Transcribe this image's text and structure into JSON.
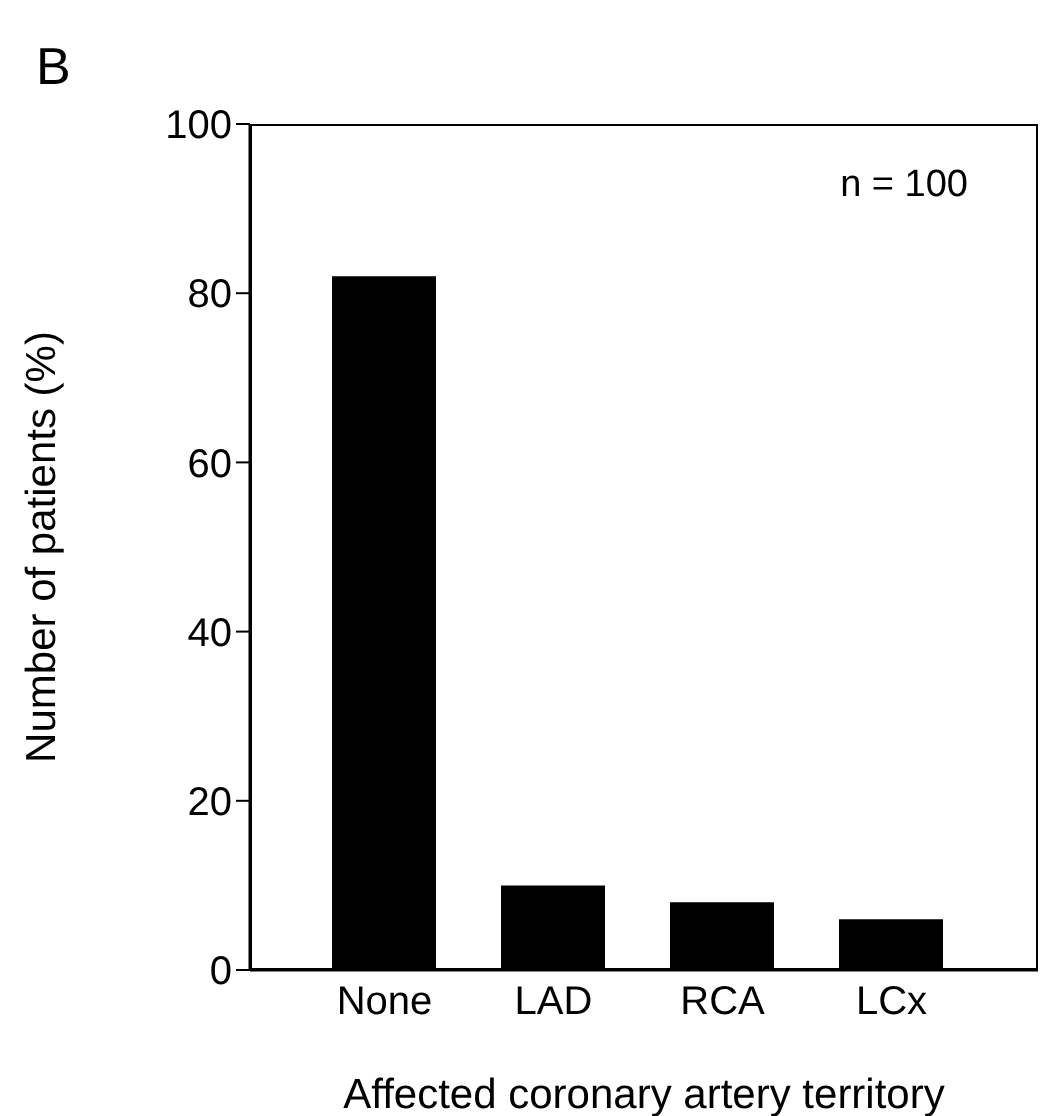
{
  "chart_data": {
    "type": "bar",
    "xlabel": "Affected coronary artery territory",
    "ylabel": "Number of patients (%)",
    "categories": [
      "None",
      "LAD",
      "RCA",
      "LCx"
    ],
    "values": [
      82,
      10,
      8,
      6
    ],
    "color": "#000000",
    "ylim": [
      0,
      100
    ],
    "yticks": [
      0,
      20,
      40,
      60,
      80,
      100
    ],
    "annotations": [
      "B",
      "n = 100"
    ]
  }
}
